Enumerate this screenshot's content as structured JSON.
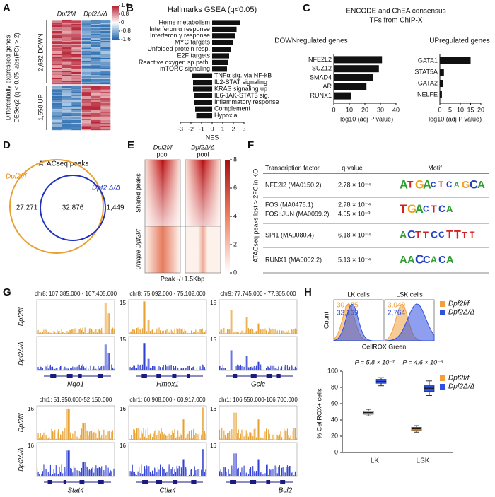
{
  "panel_a": {
    "label": "A",
    "col_labels": [
      "Dpf2f/f",
      "Dpf2Δ/Δ"
    ],
    "y_label": [
      "Differentially expressed genes",
      "DESeq2 (q < 0.05, abs(FC) > 2)"
    ],
    "groups": [
      "2,692 DOWN",
      "1,558 UP"
    ],
    "colorbar_ticks": [
      1.6,
      0.8,
      0,
      -0.8,
      -1.6
    ]
  },
  "panel_b": {
    "label": "B",
    "type": "bar",
    "title": "Hallmarks GSEA (q<0.05)",
    "color": "#111111",
    "categories": [
      "Heme metabolism",
      "Interferon α response",
      "Interferon γ response",
      "MYC targets",
      "Unfolded protein resp.",
      "E2F targets",
      "Reactive oxygen sp.path.",
      "mTORC signaling",
      "TNFα sig. via NF-kB",
      "IL2-STAT signaling",
      "KRAS signaling up",
      "IL6-JAK-STAT3 sig.",
      "Inflammatory response",
      "Complement",
      "Hypoxia"
    ],
    "values": [
      2.6,
      2.3,
      2.2,
      2.0,
      1.8,
      1.6,
      1.5,
      1.4,
      -1.9,
      -1.8,
      -1.8,
      -1.7,
      -1.7,
      -1.6,
      -1.5
    ],
    "xlim": [
      -3,
      3
    ],
    "xticks": [
      -3,
      -2,
      -1,
      0,
      1,
      2,
      3
    ],
    "x_label": "NES"
  },
  "panel_c": {
    "label": "C",
    "title": "ENCODE and ChEA consensus",
    "subtitle": "TFs from ChIP-X",
    "x_label": "−log10 (adj P value)",
    "color": "#111111",
    "charts": [
      {
        "type": "bar",
        "title": "DOWNregulated genes",
        "categories": [
          "NFE2L2",
          "SUZ12",
          "SMAD4",
          "AR",
          "RUNX1"
        ],
        "values": [
          31,
          29,
          25,
          21,
          11
        ],
        "xlim": [
          0,
          40
        ],
        "xticks": [
          0,
          10,
          20,
          30,
          40
        ]
      },
      {
        "type": "bar",
        "title": "UPregulated genes",
        "categories": [
          "GATA1",
          "STAT5A",
          "GATA2",
          "NELFE"
        ],
        "values": [
          15,
          2,
          1.5,
          1
        ],
        "xlim": [
          0,
          20
        ],
        "xticks": [
          0,
          5,
          10,
          15,
          20
        ]
      }
    ]
  },
  "panel_d": {
    "label": "D",
    "title": "ATACseq peaks",
    "sets": [
      "Dpf2f/f",
      "Dpf2 Δ/Δ"
    ],
    "counts": [
      "27,271",
      "32,876",
      "1,449"
    ]
  },
  "panel_e": {
    "label": "E",
    "col_labels": [
      [
        "Dpf2f/f",
        "pool"
      ],
      [
        "Dpf2Δ/Δ",
        "pool"
      ]
    ],
    "row_labels": [
      "Shared peaks",
      "Unique Dpf2f/f"
    ],
    "x_label": "Peak -/+1.5Kbp",
    "colorbar_ticks": [
      0,
      2,
      4,
      6,
      8
    ]
  },
  "panel_f": {
    "label": "F",
    "side_label": "ATACseq peaks lost > 2FC in KO",
    "header": [
      "Transcription factor",
      "q-value",
      "Motif"
    ],
    "rows": [
      {
        "factors": [
          "NFE2l2 (MA0150.2)"
        ],
        "q_values": [
          "2.78 × 10⁻⁴"
        ],
        "motif": [
          "A",
          "T",
          "G",
          "A",
          "C",
          "T",
          "C",
          "A",
          "G",
          "C",
          "A"
        ]
      },
      {
        "factors": [
          "FOS (MA0476.1)",
          "FOS::JUN (MA0099.2)"
        ],
        "q_values": [
          "2.78 × 10⁻⁴",
          "4.95 × 10⁻³"
        ],
        "motif": [
          "T",
          "G",
          "A",
          "C",
          "T",
          "C",
          "A"
        ]
      },
      {
        "factors": [
          "SPI1 (MA0080.4)"
        ],
        "q_values": [
          "6.18 × 10⁻⁴"
        ],
        "motif": [
          "A",
          "C",
          "T",
          "T",
          "C",
          "C",
          "T",
          "T",
          "T",
          "T"
        ]
      },
      {
        "factors": [
          "RUNX1 (MA0002.2)"
        ],
        "q_values": [
          "5.13 × 10⁻⁴"
        ],
        "motif": [
          "A",
          "A",
          "C",
          "C",
          "A",
          "C",
          "A"
        ]
      }
    ]
  },
  "panel_g": {
    "label": "G",
    "row_labels": [
      "Dpf2f/f",
      "Dpf2Δ/Δ"
    ],
    "loci": [
      {
        "coords": "chr8: 107,385,000 - 107,405,000",
        "gene": "Nqo1"
      },
      {
        "coords": "chr8: 75,092,000 - 75,102,000",
        "scale": "15",
        "gene": "Hmox1"
      },
      {
        "coords": "chr9: 77,745,000 - 77,805,000",
        "scale": "15",
        "gene": "Gclc"
      },
      {
        "coords": "chr1: 51,950,000-52,150,000",
        "scale": "16",
        "gene": "Stat4"
      },
      {
        "coords": "chr1: 60,908,000 - 60,917,000",
        "scale": "16",
        "gene": "Ctla4"
      },
      {
        "coords": "chr1: 106,550,000-106,700,000",
        "scale": "16",
        "gene": "Bcl2"
      }
    ]
  },
  "panel_h": {
    "label": "H",
    "histograms": [
      {
        "title": "LK cells",
        "counts": [
          "30,475",
          "33,169"
        ]
      },
      {
        "title": "LSK cells",
        "counts": [
          "3,049",
          "2,764"
        ]
      }
    ],
    "hist_y_label": "Count",
    "hist_x_label": "CellROX Green",
    "box": {
      "type": "box",
      "y_label": "% CellROX+ cells",
      "categories": [
        "LK",
        "LSK"
      ],
      "p_values": [
        "P = 5.8 × 10⁻⁷",
        "P = 4.6 × 10⁻⁶"
      ],
      "ylim": [
        0,
        100
      ],
      "yticks": [
        0,
        20,
        40,
        60,
        80,
        100
      ],
      "series": [
        {
          "name": "Dpf2f/f",
          "color": "#f0a040",
          "boxes": [
            {
              "min": 45,
              "q1": 47,
              "median": 49,
              "q3": 51,
              "max": 53
            },
            {
              "min": 25,
              "q1": 27,
              "median": 29,
              "q3": 31,
              "max": 33
            }
          ]
        },
        {
          "name": "Dpf2Δ/Δ",
          "color": "#3050e0",
          "boxes": [
            {
              "min": 82,
              "q1": 85,
              "median": 87,
              "q3": 90,
              "max": 92
            },
            {
              "min": 70,
              "q1": 75,
              "median": 79,
              "q3": 83,
              "max": 88
            }
          ]
        }
      ]
    }
  }
}
